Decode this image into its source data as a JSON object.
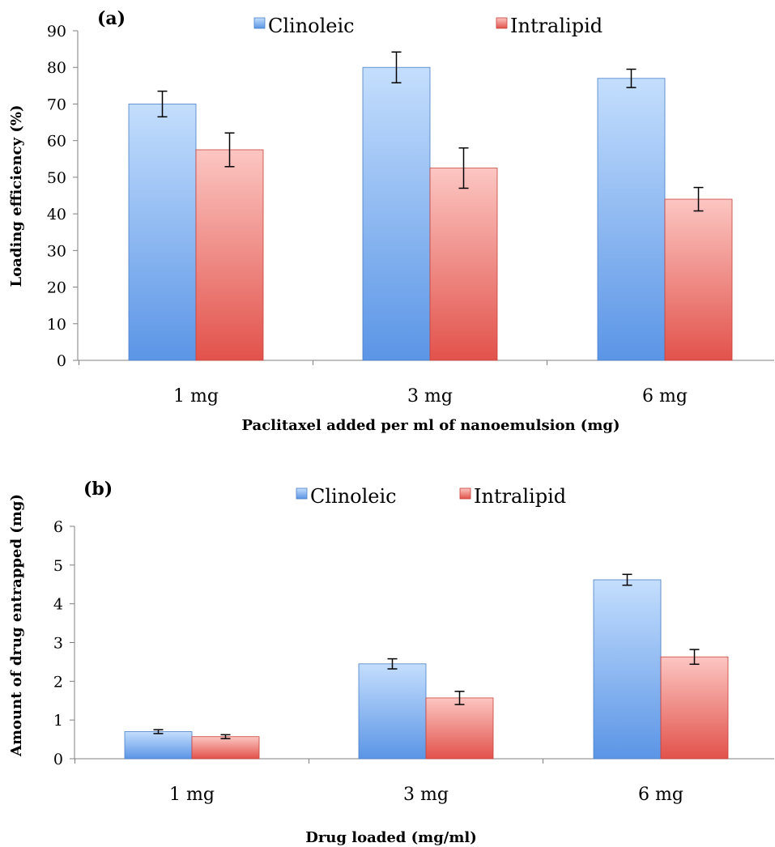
{
  "chart_data": [
    {
      "type": "bar",
      "panel_label": "(a)",
      "categories": [
        "1 mg",
        "3 mg",
        "6 mg"
      ],
      "series": [
        {
          "name": "Clinoleic",
          "values": [
            70,
            80,
            77
          ],
          "errors": [
            3.5,
            4.2,
            2.5
          ],
          "color": "#6fa8f0"
        },
        {
          "name": "Intralipid",
          "values": [
            57.5,
            52.5,
            44
          ],
          "errors": [
            4.6,
            5.5,
            3.2
          ],
          "color": "#ef8580"
        }
      ],
      "xlabel": "Paclitaxel added per ml of nanoemulsion (mg)",
      "ylabel": "Loading efficiency (%)",
      "ylim": [
        0,
        90
      ],
      "yticks": [
        "0",
        "10",
        "20",
        "30",
        "40",
        "50",
        "60",
        "70",
        "80",
        "90"
      ],
      "legend": "top",
      "grid": false
    },
    {
      "type": "bar",
      "panel_label": "(b)",
      "categories": [
        "1 mg",
        "3 mg",
        "6 mg"
      ],
      "series": [
        {
          "name": "Clinoleic",
          "values": [
            0.7,
            2.45,
            4.62
          ],
          "errors": [
            0.05,
            0.13,
            0.14
          ],
          "color": "#6fa8f0"
        },
        {
          "name": "Intralipid",
          "values": [
            0.57,
            1.57,
            2.63
          ],
          "errors": [
            0.05,
            0.17,
            0.19
          ],
          "color": "#ef8580"
        }
      ],
      "xlabel": "Drug loaded (mg/ml)",
      "ylabel": "Amount of drug entrapped (mg)",
      "ylim": [
        0,
        6
      ],
      "yticks": [
        "0",
        "1",
        "2",
        "3",
        "4",
        "5",
        "6"
      ],
      "legend": "top",
      "grid": false
    }
  ]
}
